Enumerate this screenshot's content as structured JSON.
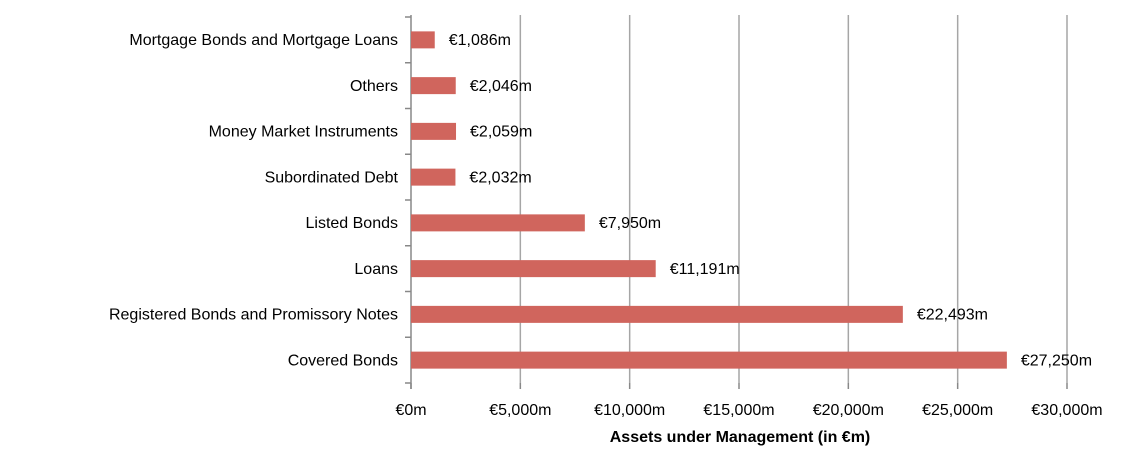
{
  "chart_data": {
    "type": "bar",
    "orientation": "horizontal",
    "xlabel": "Assets under Management (in €m)",
    "categories": [
      "Mortgage Bonds and Mortgage Loans",
      "Others",
      "Money Market Instruments",
      "Subordinated Debt",
      "Listed Bonds",
      "Loans",
      "Registered Bonds and Promissory Notes",
      "Covered Bonds"
    ],
    "values": [
      1086,
      2046,
      2059,
      2032,
      7950,
      11191,
      22493,
      27250
    ],
    "value_labels": [
      "€1,086m",
      "€2,046m",
      "€2,059m",
      "€2,032m",
      "€7,950m",
      "€11,191m",
      "€22,493m",
      "€27,250m"
    ],
    "color": "#d0655d",
    "xlim": [
      0,
      30000
    ],
    "xticks": [
      {
        "value": 0,
        "label": "€0m"
      },
      {
        "value": 5000,
        "label": "€5,000m"
      },
      {
        "value": 10000,
        "label": "€10,000m"
      },
      {
        "value": 15000,
        "label": "€15,000m"
      },
      {
        "value": 20000,
        "label": "€20,000m"
      },
      {
        "value": 25000,
        "label": "€25,000m"
      },
      {
        "value": 30000,
        "label": "€30,000m"
      }
    ],
    "grid": true
  }
}
